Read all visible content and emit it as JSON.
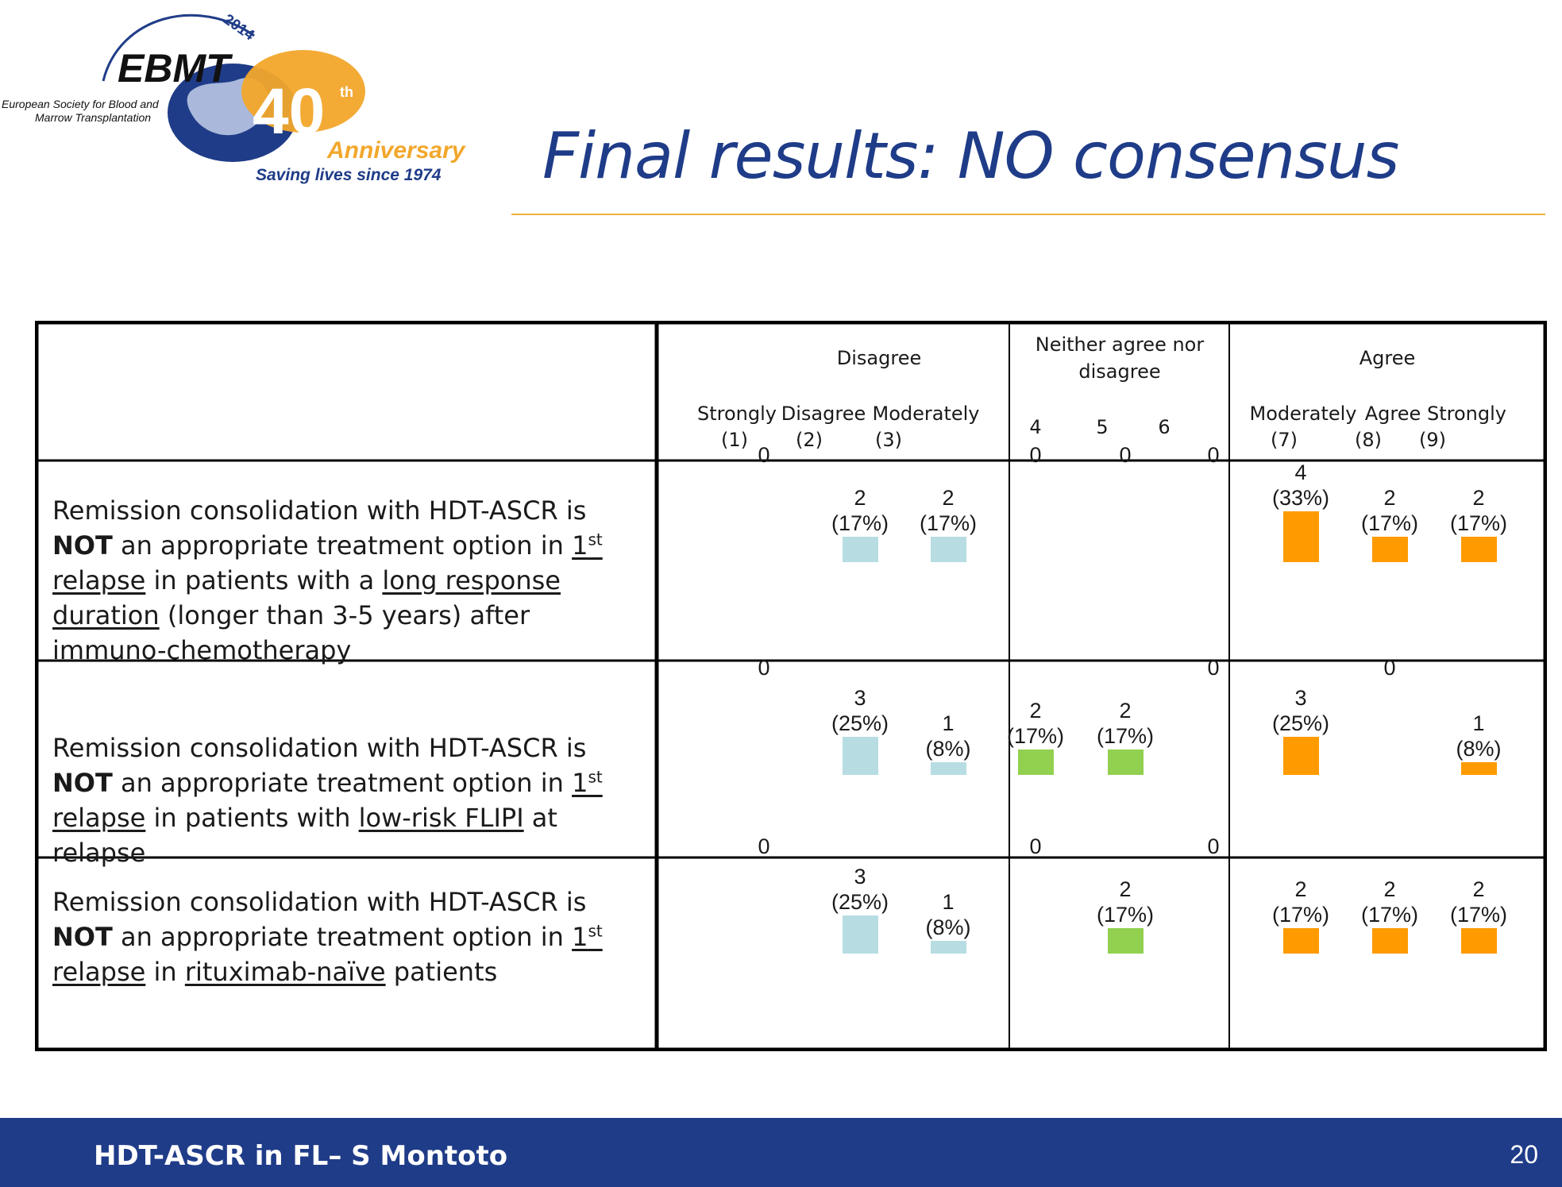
{
  "logo": {
    "year": "2014",
    "brand": "EBMT",
    "org_line1": "European Society for Blood and",
    "org_line2": "Marrow Transplantation",
    "forty": "40",
    "th": "th",
    "anniversary": "Anniversary",
    "tagline": "Saving lives since 1974"
  },
  "title": "Final results: NO consensus",
  "footer": {
    "text": "HDT-ASCR in FL– S Montoto",
    "page": "20"
  },
  "colors": {
    "disagree": "#b7dde3",
    "neutral": "#92d050",
    "agree": "#ff9b00",
    "title": "#1f3c88",
    "accent": "#e9b13d"
  },
  "chart_data": {
    "type": "table",
    "groups": [
      {
        "label": "Disagree",
        "columns": [
          [
            "Strongly",
            "(1)"
          ],
          [
            "Disagree",
            "(2)"
          ],
          [
            "Moderately",
            "(3)"
          ]
        ]
      },
      {
        "label_lines": [
          "Neither agree nor",
          "disagree"
        ],
        "columns": [
          [
            "4"
          ],
          [
            "5"
          ],
          [
            "6"
          ]
        ]
      },
      {
        "label": "Agree",
        "columns": [
          [
            "Moderately",
            "(7)"
          ],
          [
            "Agree",
            "(8)"
          ],
          [
            "Strongly",
            "(9)"
          ]
        ]
      }
    ],
    "rows": [
      {
        "statement": [
          {
            "t": "Remission consolidation with HDT-ASCR is "
          },
          {
            "t": "NOT",
            "b": true
          },
          {
            "t": " an appropriate treatment option in "
          },
          {
            "t": "1",
            "u": true
          },
          {
            "t": "st",
            "u": true,
            "sup": true
          },
          {
            "t": " relapse",
            "u": true
          },
          {
            "t": " in patients with a "
          },
          {
            "t": "long response duration",
            "u": true
          },
          {
            "t": " (longer than 3-5 years) after immuno-chemotherapy"
          }
        ],
        "counts": [
          0,
          2,
          2,
          0,
          0,
          0,
          4,
          2,
          2
        ],
        "percents": [
          "",
          "(17%)",
          "(17%)",
          "",
          "",
          "",
          "(33%)",
          "(17%)",
          "(17%)"
        ]
      },
      {
        "statement": [
          {
            "t": "Remission consolidation with HDT-ASCR is "
          },
          {
            "t": "NOT",
            "b": true
          },
          {
            "t": " an appropriate treatment option in "
          },
          {
            "t": "1",
            "u": true
          },
          {
            "t": "st",
            "u": true,
            "sup": true
          },
          {
            "t": " relapse",
            "u": true
          },
          {
            "t": " in patients with "
          },
          {
            "t": "low-risk FLIPI",
            "u": true
          },
          {
            "t": " at relapse"
          }
        ],
        "counts": [
          0,
          3,
          1,
          2,
          2,
          0,
          3,
          0,
          1
        ],
        "percents": [
          "",
          "(25%)",
          "(8%)",
          "(17%)",
          "(17%)",
          "",
          "(25%)",
          "",
          "(8%)"
        ]
      },
      {
        "statement": [
          {
            "t": "Remission consolidation with HDT-ASCR is "
          },
          {
            "t": "NOT",
            "b": true
          },
          {
            "t": " an appropriate treatment option in "
          },
          {
            "t": "1",
            "u": true
          },
          {
            "t": "st",
            "u": true,
            "sup": true
          },
          {
            "t": " relapse",
            "u": true
          },
          {
            "t": " in "
          },
          {
            "t": "rituximab-naïve",
            "u": true
          },
          {
            "t": " patients"
          }
        ],
        "counts": [
          0,
          3,
          1,
          0,
          2,
          0,
          2,
          2,
          2
        ],
        "percents": [
          "",
          "(25%)",
          "(8%)",
          "",
          "(17%)",
          "",
          "(17%)",
          "(17%)",
          "(17%)"
        ]
      }
    ]
  }
}
